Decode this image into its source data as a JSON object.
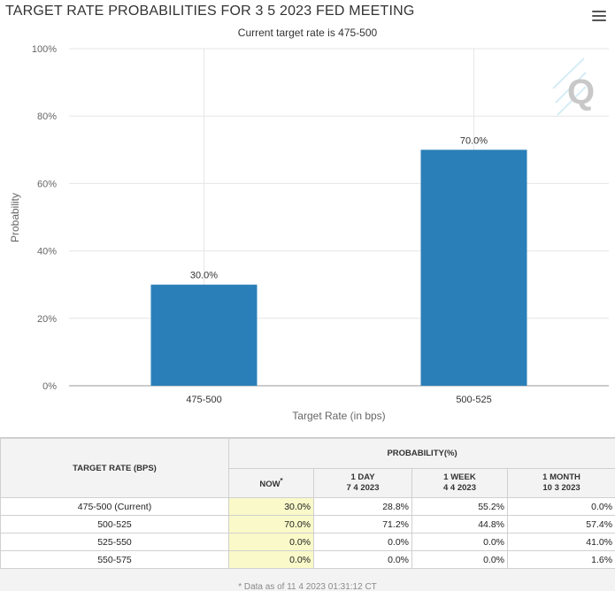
{
  "header": {
    "title": "TARGET RATE PROBABILITIES FOR 3 5 2023 FED MEETING",
    "subtitle": "Current target rate is 475-500",
    "menu_icon": "hamburger-menu-icon",
    "watermark_icon": "cme-q-logo-icon"
  },
  "chart_data": {
    "type": "bar",
    "title": "TARGET RATE PROBABILITIES FOR 3 5 2023 FED MEETING",
    "subtitle": "Current target rate is 475-500",
    "categories": [
      "475-500",
      "500-525"
    ],
    "values": [
      30.0,
      70.0
    ],
    "data_labels": [
      "30.0%",
      "70.0%"
    ],
    "xlabel": "Target Rate (in bps)",
    "ylabel": "Probability",
    "ylim": [
      0,
      100
    ],
    "yticks": [
      0,
      20,
      40,
      60,
      80,
      100
    ],
    "ytick_labels": [
      "0%",
      "20%",
      "40%",
      "60%",
      "80%",
      "100%"
    ],
    "grid": true,
    "bar_color": "#2b7fb8"
  },
  "table": {
    "rate_header": "TARGET RATE (BPS)",
    "prob_header": "PROBABILITY(%)",
    "columns": [
      {
        "label": "NOW",
        "sup": "*",
        "date": ""
      },
      {
        "label": "1 DAY",
        "date": "7 4 2023"
      },
      {
        "label": "1 WEEK",
        "date": "4 4 2023"
      },
      {
        "label": "1 MONTH",
        "date": "10 3 2023"
      }
    ],
    "rows": [
      {
        "rate": "475-500 (Current)",
        "values": [
          "30.0%",
          "28.8%",
          "55.2%",
          "0.0%"
        ]
      },
      {
        "rate": "500-525",
        "values": [
          "70.0%",
          "71.2%",
          "44.8%",
          "57.4%"
        ]
      },
      {
        "rate": "525-550",
        "values": [
          "0.0%",
          "0.0%",
          "0.0%",
          "41.0%"
        ]
      },
      {
        "rate": "550-575",
        "values": [
          "0.0%",
          "0.0%",
          "0.0%",
          "1.6%"
        ]
      }
    ],
    "now_highlight_color": "#f9f9c9"
  },
  "footnote": "* Data as of 11 4 2023 01:31:12 CT"
}
